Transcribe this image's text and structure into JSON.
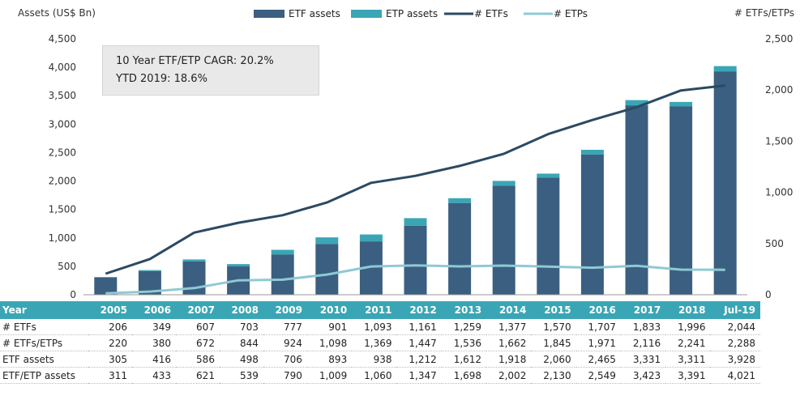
{
  "chart_data": {
    "type": "bar+line",
    "categories": [
      "2005",
      "2006",
      "2007",
      "2008",
      "2009",
      "2010",
      "2011",
      "2012",
      "2013",
      "2014",
      "2015",
      "2016",
      "2017",
      "2018",
      "Jul-19"
    ],
    "y_left_label": "Assets (US$ Bn)",
    "y_right_label": "# ETFs/ETPs",
    "y_left_range": [
      0,
      4500
    ],
    "y_left_ticks": [
      "0",
      "500",
      "1,000",
      "1,500",
      "2,000",
      "2,500",
      "3,000",
      "3,500",
      "4,000",
      "4,500"
    ],
    "y_right_range": [
      0,
      2500
    ],
    "y_right_ticks": [
      "0",
      "500",
      "1,000",
      "1,500",
      "2,000",
      "2,500"
    ],
    "legend_position": "top",
    "series": [
      {
        "name": "ETF assets",
        "kind": "bar",
        "axis": "left",
        "color": "#3b5f80",
        "values": [
          305,
          416,
          586,
          498,
          706,
          893,
          938,
          1212,
          1612,
          1918,
          2060,
          2465,
          3331,
          3311,
          3928
        ]
      },
      {
        "name": "ETP assets",
        "kind": "bar-stack-top",
        "axis": "left",
        "color": "#3aa6b5",
        "values": [
          311,
          433,
          621,
          539,
          790,
          1009,
          1060,
          1347,
          1698,
          2002,
          2130,
          2549,
          3423,
          3391,
          4021
        ]
      },
      {
        "name": "# ETFs",
        "kind": "line",
        "axis": "right",
        "color": "#2b4a63",
        "values": [
          206,
          349,
          607,
          703,
          777,
          901,
          1093,
          1161,
          1259,
          1377,
          1570,
          1707,
          1833,
          1996,
          2044
        ]
      },
      {
        "name": "# ETPs",
        "kind": "line",
        "axis": "right",
        "color": "#8fc9d4",
        "values": [
          14,
          31,
          65,
          141,
          147,
          197,
          276,
          286,
          277,
          285,
          275,
          264,
          283,
          245,
          244
        ]
      }
    ],
    "annotation": [
      "10 Year ETF/ETP CAGR: 20.2%",
      "YTD 2019: 18.6%"
    ],
    "table": {
      "header": [
        "Year",
        "2005",
        "2006",
        "2007",
        "2008",
        "2009",
        "2010",
        "2011",
        "2012",
        "2013",
        "2014",
        "2015",
        "2016",
        "2017",
        "2018",
        "Jul-19"
      ],
      "rows": [
        [
          "# ETFs",
          "206",
          "349",
          "607",
          "703",
          "777",
          "901",
          "1,093",
          "1,161",
          "1,259",
          "1,377",
          "1,570",
          "1,707",
          "1,833",
          "1,996",
          "2,044"
        ],
        [
          "# ETFs/ETPs",
          "220",
          "380",
          "672",
          "844",
          "924",
          "1,098",
          "1,369",
          "1,447",
          "1,536",
          "1,662",
          "1,845",
          "1,971",
          "2,116",
          "2,241",
          "2,288"
        ],
        [
          "ETF assets",
          "305",
          "416",
          "586",
          "498",
          "706",
          "893",
          "938",
          "1,212",
          "1,612",
          "1,918",
          "2,060",
          "2,465",
          "3,331",
          "3,311",
          "3,928"
        ],
        [
          "ETF/ETP assets",
          "311",
          "433",
          "621",
          "539",
          "790",
          "1,009",
          "1,060",
          "1,347",
          "1,698",
          "2,002",
          "2,130",
          "2,549",
          "3,423",
          "3,391",
          "4,021"
        ]
      ]
    }
  }
}
